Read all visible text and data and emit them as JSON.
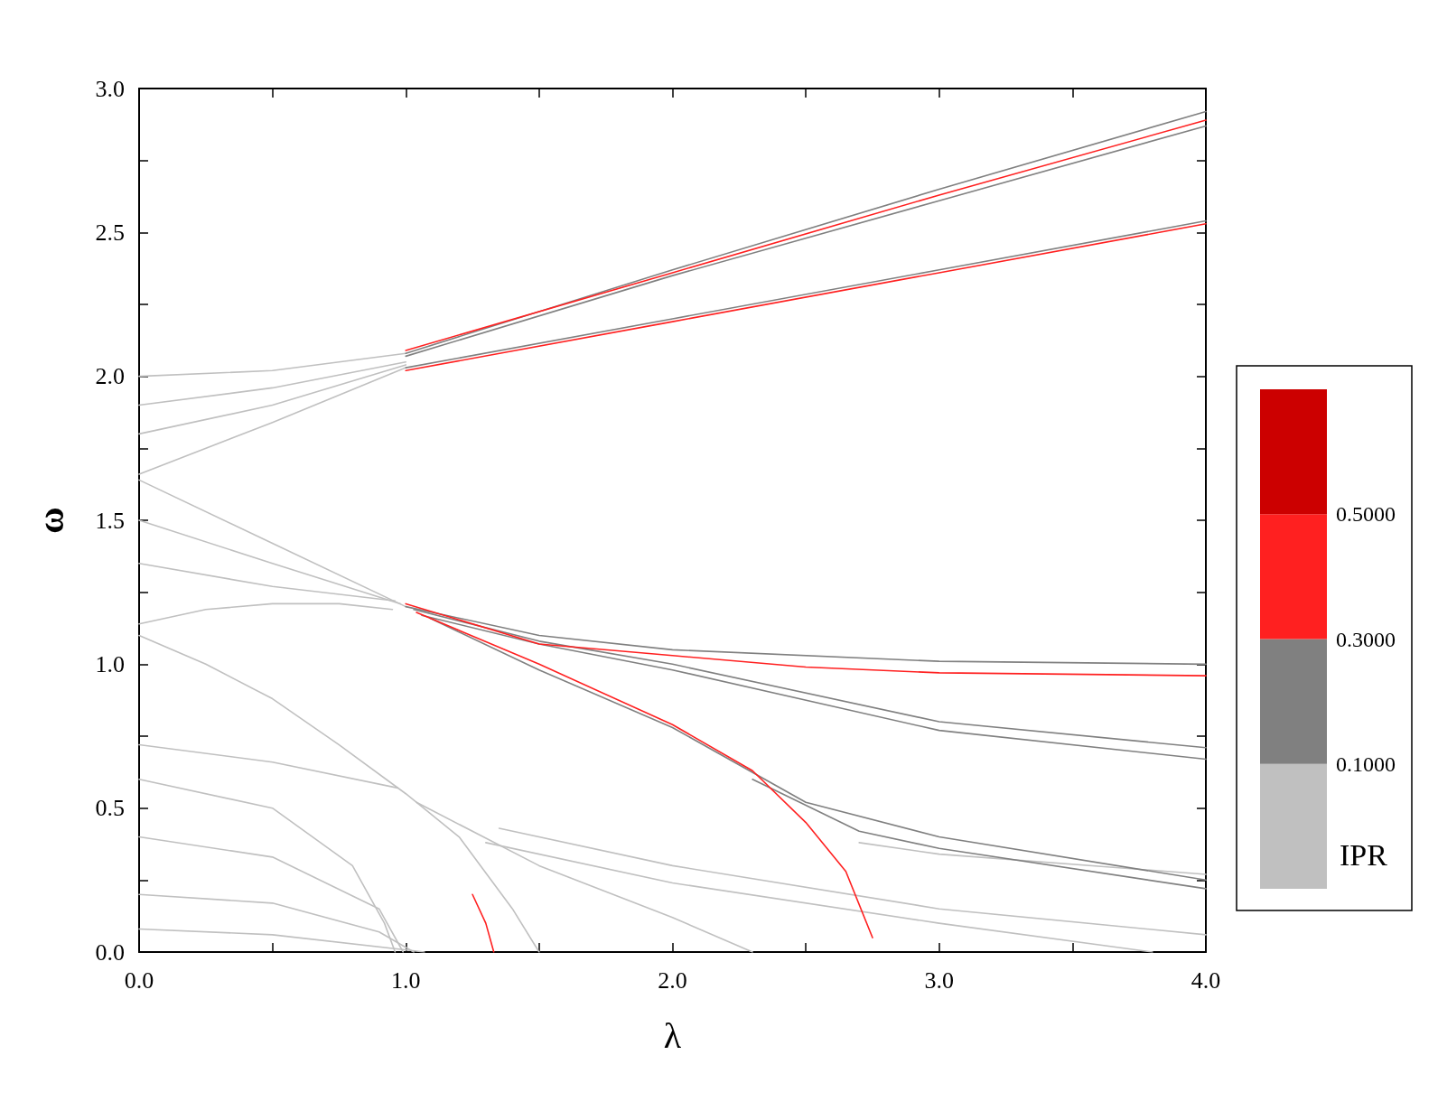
{
  "chart_data": {
    "type": "line",
    "xlabel": "λ",
    "ylabel": "ω",
    "clabel": "IPR",
    "marker": "none",
    "line_style": "solid",
    "grid": false,
    "xlim": [
      0,
      4
    ],
    "ylim": [
      0,
      3
    ],
    "xticks": [
      {
        "value": 0,
        "label": "0.0"
      },
      {
        "value": 0.5,
        "label": null
      },
      {
        "value": 1,
        "label": "1.0"
      },
      {
        "value": 1.5,
        "label": null
      },
      {
        "value": 2,
        "label": "2.0"
      },
      {
        "value": 2.5,
        "label": null
      },
      {
        "value": 3,
        "label": "3.0"
      },
      {
        "value": 3.5,
        "label": null
      },
      {
        "value": 4,
        "label": "4.0"
      }
    ],
    "yticks": [
      {
        "value": 0,
        "label": "0.0"
      },
      {
        "value": 0.25,
        "label": null
      },
      {
        "value": 0.5,
        "label": "0.5"
      },
      {
        "value": 0.75,
        "label": null
      },
      {
        "value": 1,
        "label": "1.0"
      },
      {
        "value": 1.25,
        "label": null
      },
      {
        "value": 1.5,
        "label": "1.5"
      },
      {
        "value": 1.75,
        "label": null
      },
      {
        "value": 2,
        "label": "2.0"
      },
      {
        "value": 2.25,
        "label": null
      },
      {
        "value": 2.5,
        "label": "2.5"
      },
      {
        "value": 2.75,
        "label": null
      },
      {
        "value": 3,
        "label": "3.0"
      }
    ],
    "clim": [
      -0.1,
      0.7
    ],
    "cticks": [
      {
        "value": 0.1,
        "label": "0.1000"
      },
      {
        "value": 0.3,
        "label": "0.3000"
      },
      {
        "value": 0.5,
        "label": "0.5000"
      }
    ],
    "colors": [
      "#c0c0c0",
      "#808080",
      "#ff2020",
      "#cc0000"
    ],
    "series": [
      {
        "color": "#c0c0c0",
        "x": [
          0,
          0.5,
          1.0
        ],
        "values": [
          2.0,
          2.02,
          2.08
        ]
      },
      {
        "color": "#c0c0c0",
        "x": [
          0,
          0.5,
          1.0
        ],
        "values": [
          1.9,
          1.96,
          2.05
        ]
      },
      {
        "color": "#c0c0c0",
        "x": [
          0,
          0.5,
          1.0
        ],
        "values": [
          1.8,
          1.9,
          2.04
        ]
      },
      {
        "color": "#c0c0c0",
        "x": [
          0,
          0.5,
          1.0
        ],
        "values": [
          1.66,
          1.84,
          2.03
        ]
      },
      {
        "color": "#c0c0c0",
        "x": [
          0,
          0.5,
          1.0
        ],
        "values": [
          1.64,
          1.42,
          1.2
        ]
      },
      {
        "color": "#c0c0c0",
        "x": [
          0,
          0.5,
          0.98
        ],
        "values": [
          1.5,
          1.35,
          1.21
        ]
      },
      {
        "color": "#c0c0c0",
        "x": [
          0,
          0.5,
          0.96
        ],
        "values": [
          1.35,
          1.27,
          1.22
        ]
      },
      {
        "color": "#c0c0c0",
        "x": [
          0,
          0.25,
          0.5,
          0.75,
          0.95
        ],
        "values": [
          1.14,
          1.19,
          1.21,
          1.21,
          1.19
        ]
      },
      {
        "color": "#c0c0c0",
        "x": [
          0,
          0.25,
          0.5,
          0.75,
          1.0,
          1.2,
          1.4,
          1.5
        ],
        "values": [
          1.1,
          1.0,
          0.88,
          0.72,
          0.55,
          0.4,
          0.15,
          0
        ]
      },
      {
        "color": "#c0c0c0",
        "x": [
          0,
          0.5,
          0.97
        ],
        "values": [
          0.72,
          0.66,
          0.57
        ]
      },
      {
        "color": "#c0c0c0",
        "x": [
          0,
          0.5,
          0.8,
          0.92,
          0.96
        ],
        "values": [
          0.6,
          0.5,
          0.3,
          0.1,
          0
        ]
      },
      {
        "color": "#c0c0c0",
        "x": [
          0,
          0.5,
          0.9,
          0.99
        ],
        "values": [
          0.4,
          0.33,
          0.15,
          0
        ]
      },
      {
        "color": "#c0c0c0",
        "x": [
          0,
          0.5,
          0.9,
          1.03
        ],
        "values": [
          0.2,
          0.17,
          0.07,
          0
        ]
      },
      {
        "color": "#c0c0c0",
        "x": [
          0,
          0.5,
          1.07
        ],
        "values": [
          0.08,
          0.06,
          0
        ]
      },
      {
        "color": "#c0c0c0",
        "x": [
          1.04,
          1.5,
          2.0,
          2.3
        ],
        "values": [
          0.52,
          0.3,
          0.12,
          0
        ]
      },
      {
        "color": "#c0c0c0",
        "x": [
          1.3,
          2.0,
          3.0,
          3.8
        ],
        "values": [
          0.38,
          0.24,
          0.1,
          0
        ]
      },
      {
        "color": "#c0c0c0",
        "x": [
          1.35,
          2.0,
          3.0,
          4.0
        ],
        "values": [
          0.43,
          0.3,
          0.15,
          0.06
        ]
      },
      {
        "color": "#c0c0c0",
        "x": [
          2.7,
          3.0,
          4.0
        ],
        "values": [
          0.38,
          0.34,
          0.27
        ]
      },
      {
        "color": "#808080",
        "x": [
          1.0,
          2.0,
          3.0,
          4.0
        ],
        "values": [
          2.08,
          2.37,
          2.65,
          2.92
        ]
      },
      {
        "color": "#808080",
        "x": [
          1.0,
          2.0,
          3.0,
          4.0
        ],
        "values": [
          2.07,
          2.35,
          2.61,
          2.87
        ]
      },
      {
        "color": "#808080",
        "x": [
          1.0,
          2.0,
          3.0,
          4.0
        ],
        "values": [
          2.03,
          2.2,
          2.37,
          2.54
        ]
      },
      {
        "color": "#808080",
        "x": [
          1.0,
          1.5,
          2.0,
          3.0,
          4.0
        ],
        "values": [
          1.2,
          1.1,
          1.05,
          1.01,
          1.0
        ]
      },
      {
        "color": "#808080",
        "x": [
          1.03,
          1.5,
          2.0,
          3.0,
          4.0
        ],
        "values": [
          1.19,
          1.08,
          1.0,
          0.8,
          0.71
        ]
      },
      {
        "color": "#808080",
        "x": [
          1.06,
          1.5,
          2.0,
          3.0,
          4.0
        ],
        "values": [
          1.17,
          1.07,
          0.98,
          0.77,
          0.67
        ]
      },
      {
        "color": "#808080",
        "x": [
          1.09,
          1.5,
          2.0,
          2.5,
          3.0,
          4.0
        ],
        "values": [
          1.16,
          0.98,
          0.78,
          0.52,
          0.4,
          0.25
        ]
      },
      {
        "color": "#808080",
        "x": [
          2.3,
          2.7,
          3.0,
          4.0
        ],
        "values": [
          0.6,
          0.42,
          0.36,
          0.22
        ]
      },
      {
        "color": "#ff2020",
        "x": [
          1.0,
          2.0,
          3.0,
          4.0
        ],
        "values": [
          2.09,
          2.36,
          2.63,
          2.89
        ]
      },
      {
        "color": "#ff2020",
        "x": [
          1.0,
          2.0,
          3.0,
          4.0
        ],
        "values": [
          2.02,
          2.19,
          2.36,
          2.53
        ]
      },
      {
        "color": "#ff2020",
        "x": [
          1.0,
          1.5,
          2.0,
          2.5,
          3.0,
          4.0
        ],
        "values": [
          1.21,
          1.07,
          1.03,
          0.99,
          0.97,
          0.96
        ]
      },
      {
        "color": "#ff2020",
        "x": [
          1.04,
          1.5,
          2.0,
          2.3,
          2.5,
          2.65,
          2.75
        ],
        "values": [
          1.18,
          1.0,
          0.79,
          0.63,
          0.45,
          0.28,
          0.05
        ]
      },
      {
        "color": "#ff2020",
        "x": [
          1.25,
          1.3,
          1.33
        ],
        "values": [
          0.2,
          0.1,
          0
        ]
      }
    ]
  }
}
